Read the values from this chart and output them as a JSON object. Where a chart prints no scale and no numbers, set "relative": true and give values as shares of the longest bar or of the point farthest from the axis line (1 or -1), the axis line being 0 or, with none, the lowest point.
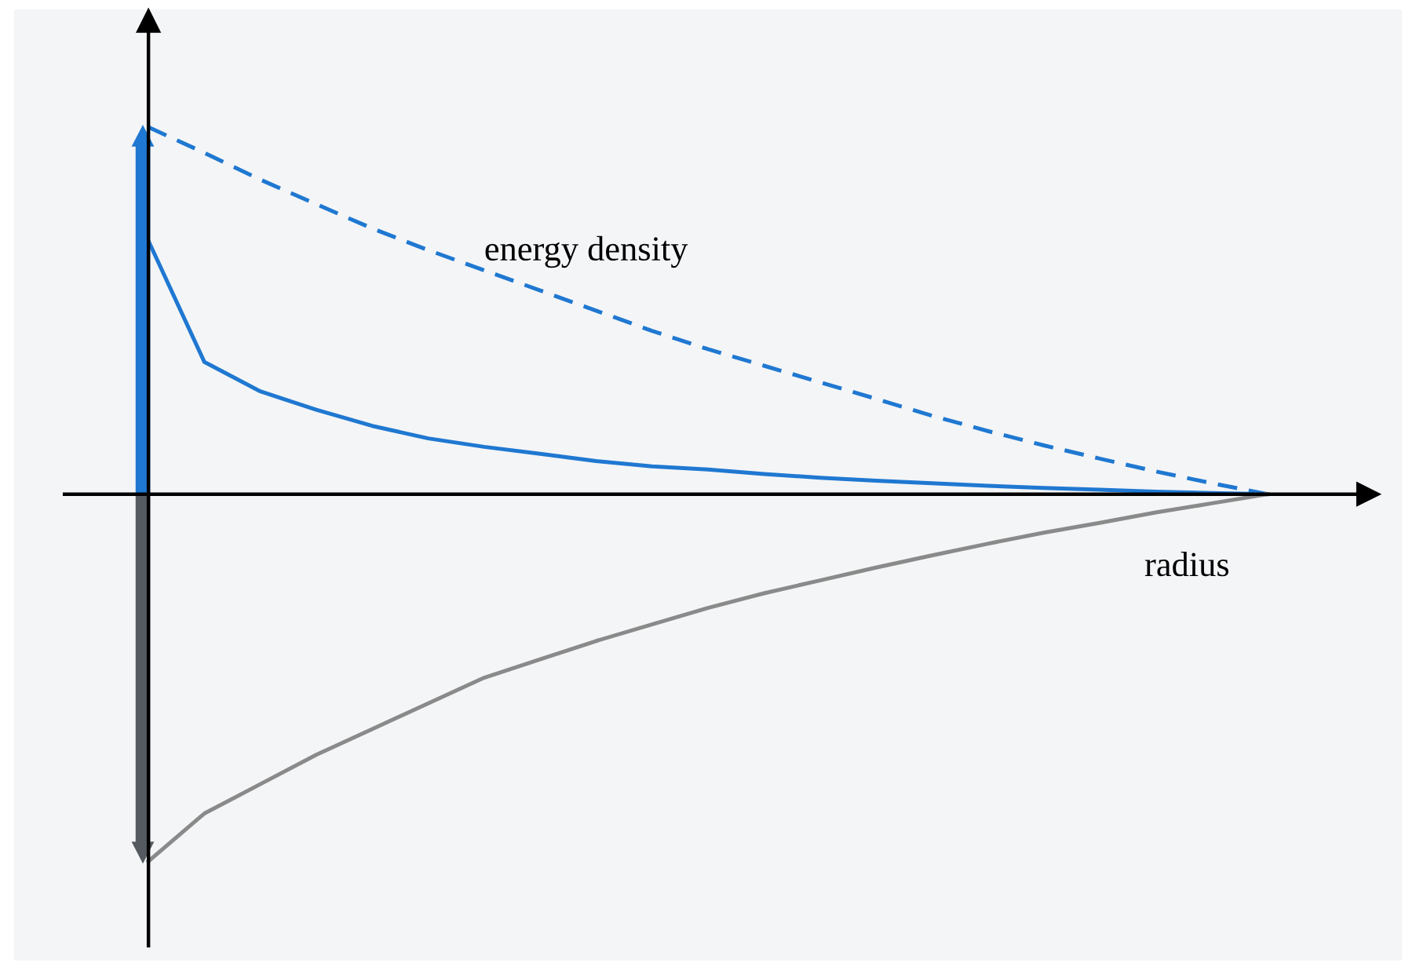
{
  "chart_data": {
    "type": "line",
    "relative": true,
    "xlabel": "radius",
    "annotations": [
      "energy density"
    ],
    "categories": [
      null,
      null,
      null,
      null,
      null,
      null,
      null,
      null,
      null,
      null,
      null,
      null,
      null,
      null,
      null,
      null,
      null,
      null,
      null,
      null,
      null
    ],
    "series": [
      {
        "color": "#1f78d1",
        "line_style": "dashed",
        "values": [
          1.0,
          0.93,
          0.857,
          0.79,
          0.724,
          0.665,
          0.61,
          0.555,
          0.5,
          0.445,
          0.395,
          0.35,
          0.305,
          0.26,
          0.214,
          0.172,
          0.133,
          0.097,
          0.062,
          0.03,
          0
        ]
      },
      {
        "color": "#1f78d1",
        "line_style": "solid",
        "values": [
          0.69,
          0.36,
          0.28,
          0.23,
          0.186,
          0.152,
          0.129,
          0.11,
          0.09,
          0.076,
          0.067,
          0.055,
          0.045,
          0.037,
          0.03,
          0.023,
          0.017,
          0.012,
          0.007,
          0.003,
          0
        ]
      },
      {
        "color": "#8a8a8a",
        "line_style": "solid",
        "values": [
          -1,
          -0.87,
          -0.79,
          -0.71,
          -0.64,
          -0.57,
          -0.5,
          -0.45,
          -0.4,
          -0.355,
          -0.31,
          -0.27,
          -0.235,
          -0.2,
          -0.167,
          -0.135,
          -0.105,
          -0.078,
          -0.05,
          -0.025,
          0
        ]
      }
    ],
    "legend": false,
    "marker": "none"
  }
}
